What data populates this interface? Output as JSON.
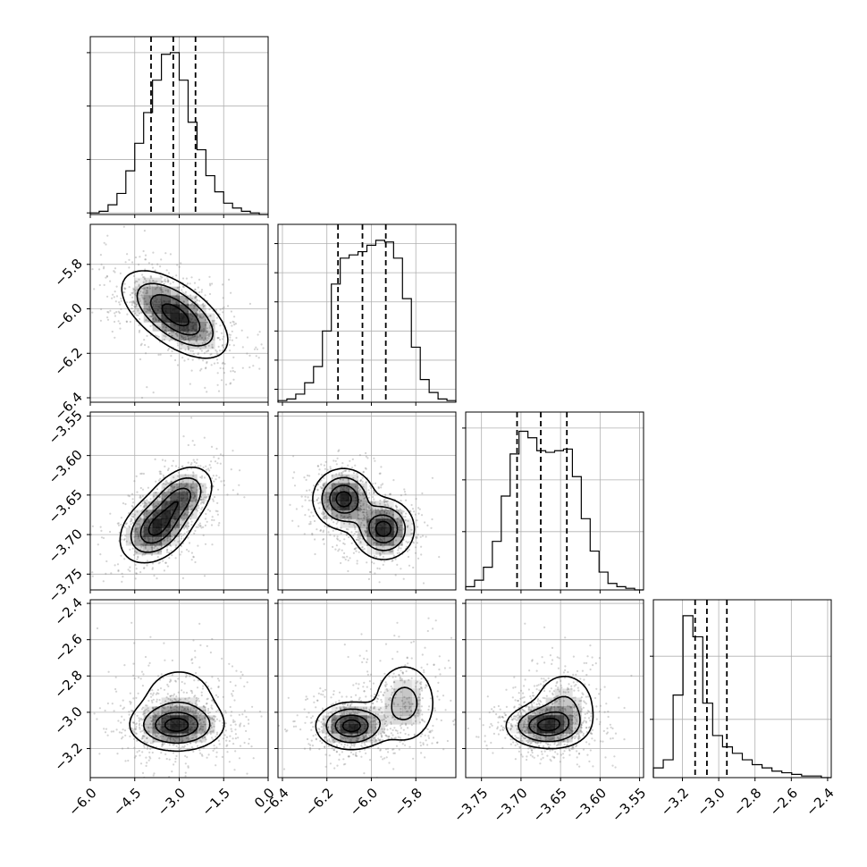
{
  "figure": {
    "colors": {
      "background": "#ffffff",
      "axes": "#000000",
      "grid": "#b0b0b0",
      "histogram": "#000000",
      "contour": "#000000",
      "density": "#000000",
      "scatter": "#808080"
    },
    "params": [
      "p0",
      "p1",
      "p2",
      "p3"
    ]
  },
  "chart_data": {
    "type": "corner",
    "grid": true,
    "params": [
      {
        "id": "p0",
        "range": [
          -6.0,
          0.0
        ],
        "ticks": [
          -6.0,
          -4.5,
          -3.0,
          -1.5,
          0.0
        ],
        "tick_labels": [
          "−6.0",
          "−4.5",
          "−3.0",
          "−1.5",
          "0.0"
        ],
        "quantiles": [
          -3.95,
          -3.2,
          -2.45
        ],
        "hist_values": [
          1,
          2,
          6,
          13,
          27,
          44,
          63,
          83,
          99,
          100,
          83,
          57,
          40,
          24,
          14,
          7,
          4,
          2,
          1,
          0
        ],
        "hist_grid": [
          0.01,
          0.34,
          0.67,
          1.0
        ]
      },
      {
        "id": "p1",
        "range": [
          -6.42,
          -5.62
        ],
        "ticks": [
          -6.4,
          -6.2,
          -6.0,
          -5.8
        ],
        "tick_labels": [
          "−6.4",
          "−6.2",
          "−6.0",
          "−5.8"
        ],
        "quantiles": [
          -6.15,
          -6.04,
          -5.935
        ],
        "hist_values": [
          1,
          2,
          5,
          12,
          22,
          44,
          73,
          89,
          91,
          93,
          97,
          100,
          99,
          89,
          64,
          34,
          14,
          6,
          2,
          1
        ],
        "hist_grid": [
          0.08,
          0.26,
          0.44,
          0.62,
          0.8,
          0.98
        ]
      },
      {
        "id": "p2",
        "range": [
          -3.77,
          -3.545
        ],
        "ticks": [
          -3.75,
          -3.7,
          -3.65,
          -3.6,
          -3.55
        ],
        "tick_labels": [
          "−3.75",
          "−3.70",
          "−3.65",
          "−3.60",
          "−3.55"
        ],
        "quantiles": [
          -3.705,
          -3.675,
          -3.642
        ],
        "hist_values": [
          2,
          6,
          14,
          30,
          58,
          84,
          98,
          94,
          86,
          85,
          86,
          87,
          70,
          44,
          24,
          11,
          4,
          2,
          1,
          0
        ],
        "hist_grid": [
          0.36,
          0.68,
          1.0
        ]
      },
      {
        "id": "p3",
        "range": [
          -3.36,
          -2.38
        ],
        "ticks": [
          -3.2,
          -3.0,
          -2.8,
          -2.6,
          -2.4
        ],
        "tick_labels": [
          "−3.2",
          "−3.0",
          "−2.8",
          "−2.6",
          "−2.4"
        ],
        "quantiles": [
          -3.13,
          -3.065,
          -2.955
        ],
        "hist_values": [
          6,
          11,
          51,
          100,
          87,
          46,
          26,
          19,
          15,
          11,
          8,
          6,
          4,
          3,
          2,
          1,
          1,
          0
        ],
        "hist_grid": [
          0.36,
          0.75
        ]
      }
    ],
    "pairs": [
      {
        "x": "p0",
        "y": "p1",
        "peaks": [
          {
            "center": [
              -3.5,
              -5.99
            ],
            "amp": 1.0,
            "cov": [
              [
                0.6,
                -0.034
              ],
              [
                -0.034,
                0.0075
              ]
            ]
          },
          {
            "center": [
              -2.7,
              -6.07
            ],
            "amp": 0.85,
            "cov": [
              [
                0.55,
                -0.03
              ],
              [
                -0.03,
                0.007
              ]
            ]
          }
        ]
      },
      {
        "x": "p0",
        "y": "p2",
        "peaks": [
          {
            "center": [
              -3.8,
              -3.693
            ],
            "amp": 1.0,
            "cov": [
              [
                0.35,
                0.004
              ],
              [
                0.004,
                0.00045
              ]
            ]
          },
          {
            "center": [
              -2.95,
              -3.653
            ],
            "amp": 0.8,
            "cov": [
              [
                0.3,
                0.004
              ],
              [
                0.004,
                0.0004
              ]
            ]
          }
        ]
      },
      {
        "x": "p0",
        "y": "p3",
        "peaks": [
          {
            "center": [
              -3.1,
              -3.075
            ],
            "amp": 1.0,
            "cov": [
              [
                0.55,
                0.0
              ],
              [
                0.0,
                0.004
              ]
            ]
          },
          {
            "center": [
              -3.0,
              -2.95
            ],
            "amp": 0.3,
            "cov": [
              [
                0.8,
                0.0
              ],
              [
                0.0,
                0.02
              ]
            ]
          }
        ]
      },
      {
        "x": "p1",
        "y": "p2",
        "peaks": [
          {
            "center": [
              -6.125,
              -3.655
            ],
            "amp": 1.0,
            "cov": [
              [
                0.0045,
                0.0
              ],
              [
                0.0,
                0.00035
              ]
            ]
          },
          {
            "center": [
              -5.945,
              -3.693
            ],
            "amp": 1.0,
            "cov": [
              [
                0.0045,
                0.0
              ],
              [
                0.0,
                0.00035
              ]
            ]
          }
        ]
      },
      {
        "x": "p1",
        "y": "p3",
        "peaks": [
          {
            "center": [
              -6.09,
              -3.075
            ],
            "amp": 1.0,
            "cov": [
              [
                0.006,
                0.0
              ],
              [
                0.0,
                0.004
              ]
            ]
          },
          {
            "center": [
              -5.85,
              -2.95
            ],
            "amp": 0.45,
            "cov": [
              [
                0.006,
                0.0
              ],
              [
                0.0,
                0.015
              ]
            ]
          }
        ]
      },
      {
        "x": "p2",
        "y": "p3",
        "peaks": [
          {
            "center": [
              -3.67,
              -3.075
            ],
            "amp": 1.0,
            "cov": [
              [
                0.0006,
                0.0
              ],
              [
                0.0,
                0.0035
              ]
            ]
          },
          {
            "center": [
              -3.645,
              -2.97
            ],
            "amp": 0.45,
            "cov": [
              [
                0.0005,
                0.0
              ],
              [
                0.0,
                0.012
              ]
            ]
          }
        ]
      }
    ],
    "contour_levels": [
      0.12,
      0.35,
      0.65,
      0.88
    ]
  }
}
